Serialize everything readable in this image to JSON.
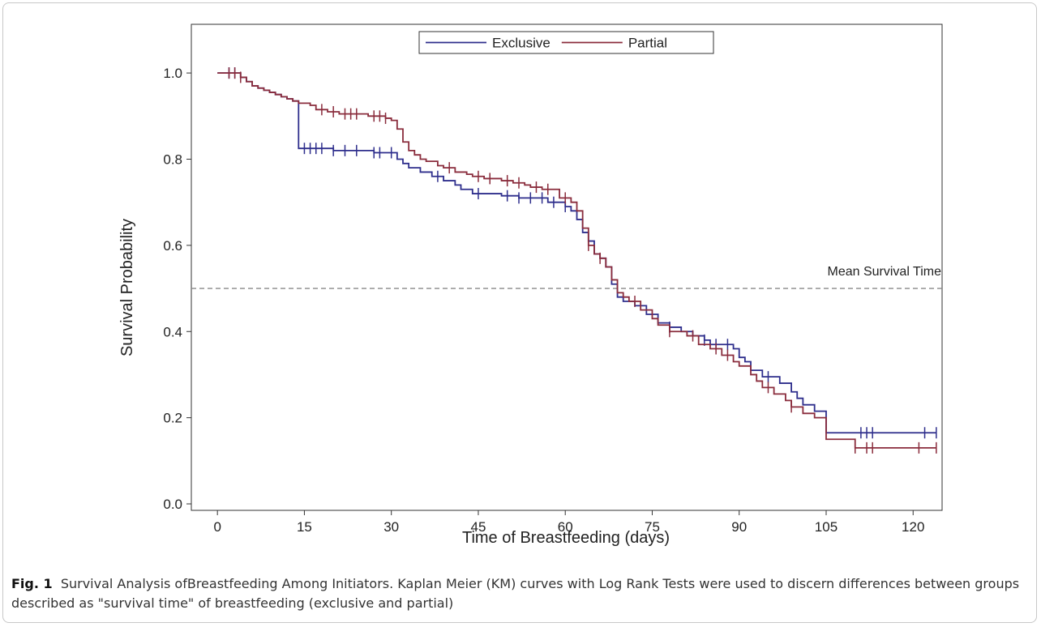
{
  "chart_data": {
    "type": "line",
    "drawstyle": "steps-post",
    "xlabel": "Time of Breastfeeding (days)",
    "ylabel": "Survival Probability",
    "xlim": [
      -4.5,
      125
    ],
    "ylim": [
      -0.015,
      1.113
    ],
    "xticks": [
      0,
      15,
      30,
      45,
      60,
      75,
      90,
      105,
      120
    ],
    "yticks": [
      {
        "value": 0,
        "label": "0.0"
      },
      0.2,
      0.4,
      0.6,
      0.8,
      {
        "value": 1,
        "label": "1.0"
      }
    ],
    "legend": "upper center",
    "reference_line": {
      "y": 0.5,
      "label": "Mean Survival Time",
      "color": "#888888"
    },
    "series": [
      {
        "name": "Exclusive",
        "color": "#2e2e8c",
        "x": [
          0,
          4,
          5,
          6,
          7,
          8,
          9,
          10,
          11,
          12,
          13,
          14,
          20,
          27,
          31,
          32,
          33,
          35,
          37,
          39,
          41,
          42,
          44,
          49,
          52,
          57,
          60,
          61,
          62,
          63,
          64,
          65,
          66,
          67,
          68,
          69,
          70,
          72,
          74,
          76,
          78,
          80,
          82,
          84,
          85,
          89,
          90,
          91,
          92,
          94,
          97,
          99,
          100,
          101,
          103,
          105,
          124
        ],
        "values": [
          1.0,
          0.99,
          0.98,
          0.97,
          0.965,
          0.96,
          0.955,
          0.95,
          0.945,
          0.94,
          0.935,
          0.825,
          0.82,
          0.815,
          0.8,
          0.79,
          0.78,
          0.77,
          0.76,
          0.75,
          0.74,
          0.73,
          0.72,
          0.715,
          0.71,
          0.7,
          0.69,
          0.68,
          0.66,
          0.63,
          0.61,
          0.58,
          0.57,
          0.55,
          0.51,
          0.48,
          0.47,
          0.46,
          0.44,
          0.42,
          0.41,
          0.4,
          0.39,
          0.38,
          0.37,
          0.36,
          0.34,
          0.33,
          0.31,
          0.295,
          0.28,
          0.26,
          0.245,
          0.23,
          0.215,
          0.165,
          0.165
        ],
        "censored": [
          2,
          3,
          15,
          16,
          17,
          18,
          20,
          22,
          24,
          27,
          28,
          30,
          38,
          45,
          50,
          52,
          54,
          56,
          58,
          60,
          78,
          84,
          86,
          88,
          95,
          111,
          112,
          113,
          122,
          124
        ]
      },
      {
        "name": "Partial",
        "color": "#8a2c3c",
        "x": [
          0,
          4,
          5,
          6,
          7,
          8,
          9,
          10,
          11,
          12,
          13,
          14,
          16,
          17,
          19,
          21,
          26,
          29,
          30,
          31,
          32,
          33,
          34,
          35,
          36,
          38,
          39,
          41,
          43,
          44,
          46,
          49,
          51,
          53,
          54,
          56,
          59,
          61,
          62,
          63,
          64,
          65,
          66,
          67,
          68,
          69,
          70,
          71,
          73,
          75,
          76,
          78,
          81,
          83,
          85,
          87,
          89,
          90,
          92,
          93,
          94,
          96,
          98,
          99,
          101,
          103,
          105,
          110,
          124
        ],
        "values": [
          1.0,
          0.99,
          0.98,
          0.97,
          0.965,
          0.96,
          0.955,
          0.95,
          0.945,
          0.94,
          0.935,
          0.93,
          0.925,
          0.915,
          0.91,
          0.905,
          0.9,
          0.895,
          0.89,
          0.87,
          0.84,
          0.82,
          0.81,
          0.8,
          0.795,
          0.785,
          0.78,
          0.77,
          0.765,
          0.76,
          0.755,
          0.75,
          0.745,
          0.74,
          0.735,
          0.73,
          0.71,
          0.7,
          0.68,
          0.64,
          0.6,
          0.58,
          0.57,
          0.55,
          0.52,
          0.49,
          0.48,
          0.47,
          0.45,
          0.43,
          0.415,
          0.4,
          0.39,
          0.37,
          0.36,
          0.345,
          0.33,
          0.32,
          0.3,
          0.285,
          0.27,
          0.255,
          0.24,
          0.225,
          0.21,
          0.2,
          0.15,
          0.13,
          0.13
        ],
        "censored": [
          2,
          3,
          4,
          18,
          20,
          22,
          23,
          24,
          27,
          28,
          29,
          40,
          45,
          47,
          50,
          52,
          55,
          57,
          60,
          64,
          66,
          72,
          78,
          82,
          86,
          88,
          95,
          99,
          110,
          112,
          113,
          121,
          124
        ]
      }
    ]
  },
  "caption_label": "Fig. 1",
  "caption": "Survival Analysis ofBreastfeeding Among Initiators. Kaplan Meier (KM) curves with Log Rank Tests were used to discern differences between groups described as \"survival time\" of breastfeeding (exclusive and partial)"
}
